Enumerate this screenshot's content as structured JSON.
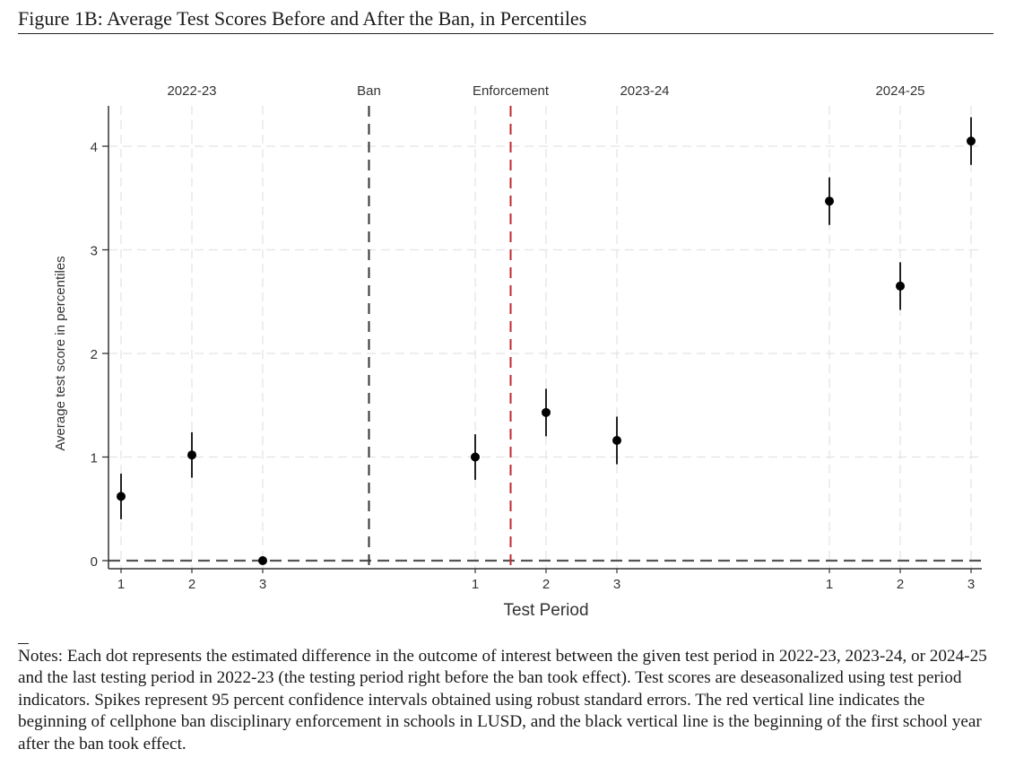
{
  "figure": {
    "title": "Figure 1B: Average Test Scores Before and After the Ban, in Percentiles",
    "notes": "Notes: Each dot represents the estimated difference in the outcome of interest between the given test period in 2022-23, 2023-24, or 2024-25 and the last testing period in 2022-23 (the testing period right before the ban took effect). Test scores are deseasonalized using test period indicators. Spikes represent 95 percent confidence intervals obtained using robust standard errors. The red vertical line indicates the beginning of cellphone ban disciplinary enforcement in schools in LUSD, and the black vertical line is the beginning of the first school year after the ban took effect."
  },
  "chart_data": {
    "type": "scatter",
    "title": "",
    "xlabel": "Test Period",
    "ylabel": "Average test score in percentiles",
    "ylim": [
      -0.08,
      4.4
    ],
    "yticks": [
      0,
      1,
      2,
      3,
      4
    ],
    "grid": true,
    "groups": [
      {
        "name": "2022-23",
        "ticks": [
          "1",
          "2",
          "3"
        ]
      },
      {
        "name": "2023-24",
        "ticks": [
          "1",
          "2",
          "3"
        ]
      },
      {
        "name": "2024-25",
        "ticks": [
          "1",
          "2",
          "3"
        ]
      }
    ],
    "series": [
      {
        "name": "2022-23",
        "x": [
          1,
          2,
          3
        ],
        "values": [
          0.62,
          1.02,
          0.0
        ],
        "ci_low": [
          0.4,
          0.8,
          0.0
        ],
        "ci_high": [
          0.84,
          1.24,
          0.0
        ]
      },
      {
        "name": "2023-24",
        "x": [
          1,
          2,
          3
        ],
        "values": [
          1.0,
          1.43,
          1.16
        ],
        "ci_low": [
          0.78,
          1.2,
          0.93
        ],
        "ci_high": [
          1.22,
          1.66,
          1.39
        ]
      },
      {
        "name": "2024-25",
        "x": [
          1,
          2,
          3
        ],
        "values": [
          3.47,
          2.65,
          4.05
        ],
        "ci_low": [
          3.24,
          2.42,
          3.82
        ],
        "ci_high": [
          3.7,
          2.88,
          4.28
        ]
      }
    ],
    "reference_lines": [
      {
        "label": "Ban",
        "color": "#333333",
        "between": "2022-23 period 3 and 2023-24 period 1"
      },
      {
        "label": "Enforcement",
        "color": "#c0282d",
        "between": "2023-24 period 1 and 2023-24 period 2"
      }
    ],
    "zero_line": 0,
    "colors": {
      "points": "#000000",
      "axis": "#333333",
      "grid": "#e3e3e3",
      "enforcement": "#c0282d",
      "ban": "#333333"
    }
  }
}
